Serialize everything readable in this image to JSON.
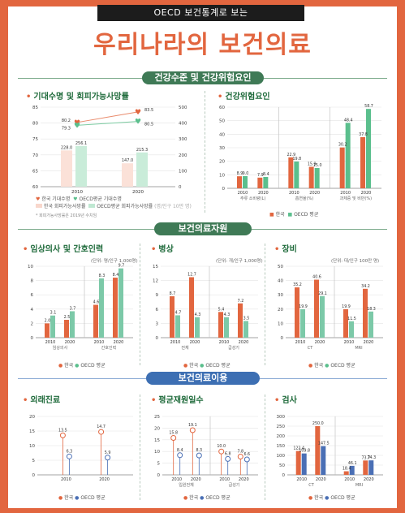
{
  "header": {
    "topbar": "OECD 보건통계로 보는",
    "title": "우리나라의 보건의료"
  },
  "sections": {
    "s1": "건강수준 및 건강위험요인",
    "s2": "보건의료자원",
    "s3": "보건의료이용"
  },
  "panels": {
    "life": "기대수명 및 회피가능사망률",
    "risk": "건강위험요인",
    "doctors": "임상의사 및 간호인력",
    "beds": "병상",
    "equip": "장비",
    "outpatient": "외래진료",
    "alos": "평균재원일수",
    "exam": "검사"
  },
  "legends": {
    "korea": "한국",
    "oecd": "OECD 평균",
    "life_k_le": "한국 기대수명",
    "life_o_le": "OECD평균 기대수명",
    "life_k_am": "한국 회피가능사망률",
    "life_o_am": "OECD평균 회피가능사망률",
    "life_note": "* 회피가능사망률은 2019년 수치임",
    "life_unit_right": "(명/인구 10만 명)"
  },
  "units": {
    "doctors": "(단위: 명/인구 1,000명)",
    "beds": "(단위: 개/인구 1,000명)",
    "equip": "(단위: 대/인구 100만 명)"
  },
  "colors": {
    "korea": "#e2663f",
    "oecd": "#5bbf8d",
    "oecd_blue": "#4a6fb5",
    "green_title": "#1e6a3a"
  },
  "chart_data": [
    {
      "id": "life",
      "type": "bar+line",
      "categories": [
        "2010",
        "2020"
      ],
      "y_left_ticks": [
        "60",
        "65",
        "70",
        "75",
        "80",
        "85"
      ],
      "ylim_left": [
        60,
        85
      ],
      "y_right_ticks": [
        "0",
        "100",
        "200",
        "300",
        "400",
        "500"
      ],
      "ylim_right": [
        0,
        500
      ],
      "series": [
        {
          "name": "한국 기대수명",
          "type": "line",
          "values": [
            80.2,
            83.5
          ]
        },
        {
          "name": "OECD평균 기대수명",
          "type": "line",
          "values": [
            79.3,
            80.5
          ]
        },
        {
          "name": "한국 회피가능사망률",
          "type": "bar",
          "values": [
            228.0,
            147.0
          ]
        },
        {
          "name": "OECD평균 회피가능사망률",
          "type": "bar",
          "values": [
            256.1,
            215.3
          ]
        }
      ],
      "labels": {
        "k_line": [
          "80.2",
          "83.5"
        ],
        "o_line": [
          "79.3",
          "80.5"
        ],
        "k_bar": [
          "228.0",
          "147.0"
        ],
        "o_bar": [
          "256.1",
          "215.3"
        ]
      }
    },
    {
      "id": "risk",
      "type": "bar",
      "groups": [
        {
          "name": "주류 소비량(L)",
          "categories": [
            "2010",
            "2020"
          ],
          "korea": [
            8.9,
            7.9
          ],
          "oecd": [
            9.0,
            8.4
          ],
          "labels": [
            "8.9",
            "9.0",
            "7.9",
            "8.4"
          ]
        },
        {
          "name": "흡연율(%)",
          "categories": [
            "2010",
            "2020"
          ],
          "korea": [
            22.9,
            15.9
          ],
          "oecd": [
            19.8,
            15.0
          ],
          "labels": [
            "22.9",
            "19.8",
            "15.9",
            "15.0"
          ]
        },
        {
          "name": "과체중 및 비만(%)",
          "categories": [
            "2010",
            "2020"
          ],
          "korea": [
            30.2,
            37.8
          ],
          "oecd": [
            48.4,
            58.7
          ],
          "labels": [
            "30.2",
            "48.4",
            "37.8",
            "58.7"
          ]
        }
      ],
      "y_ticks": [
        "0",
        "10",
        "20",
        "30",
        "40",
        "50",
        "60"
      ],
      "ylim": [
        0,
        60
      ]
    },
    {
      "id": "doctors",
      "type": "bar",
      "groups": [
        {
          "name": "임상의사",
          "categories": [
            "2010",
            "2020"
          ],
          "korea": [
            2.0,
            2.5
          ],
          "oecd": [
            3.1,
            3.7
          ]
        },
        {
          "name": "간호인력",
          "categories": [
            "2010",
            "2020"
          ],
          "korea": [
            4.6,
            8.4
          ],
          "oecd": [
            8.3,
            9.7
          ]
        }
      ],
      "labels": [
        "2.0",
        "3.1",
        "2.5",
        "3.7",
        "4.6",
        "8.3",
        "8.4",
        "9.7"
      ],
      "y_ticks": [
        "0",
        "2",
        "4",
        "6",
        "8",
        "10"
      ],
      "ylim": [
        0,
        10
      ]
    },
    {
      "id": "beds",
      "type": "bar",
      "groups": [
        {
          "name": "전체",
          "categories": [
            "2010",
            "2020"
          ],
          "korea": [
            8.7,
            12.7
          ],
          "oecd": [
            4.7,
            4.3
          ]
        },
        {
          "name": "급성기",
          "categories": [
            "2010",
            "2020"
          ],
          "korea": [
            5.4,
            7.2
          ],
          "oecd": [
            4.3,
            3.5
          ]
        }
      ],
      "labels": [
        "8.7",
        "4.7",
        "12.7",
        "4.3",
        "5.4",
        "4.3",
        "7.2",
        "3.5"
      ],
      "y_ticks": [
        "0",
        "3",
        "6",
        "9",
        "12",
        "15"
      ],
      "ylim": [
        0,
        15
      ]
    },
    {
      "id": "equip",
      "type": "bar",
      "groups": [
        {
          "name": "CT",
          "categories": [
            "2010",
            "2020"
          ],
          "korea": [
            35.2,
            40.6
          ],
          "oecd": [
            19.9,
            29.1
          ]
        },
        {
          "name": "MRI",
          "categories": [
            "2010",
            "2020"
          ],
          "korea": [
            19.9,
            34.2
          ],
          "oecd": [
            11.5,
            18.3
          ]
        }
      ],
      "labels": [
        "35.2",
        "19.9",
        "40.6",
        "29.1",
        "19.9",
        "11.5",
        "34.2",
        "18.3"
      ],
      "y_ticks": [
        "0",
        "10",
        "20",
        "30",
        "40",
        "50"
      ],
      "ylim": [
        0,
        50
      ]
    },
    {
      "id": "outpatient",
      "type": "lollipop",
      "categories": [
        "2010",
        "2020"
      ],
      "korea": [
        13.5,
        14.7
      ],
      "oecd": [
        6.3,
        5.9
      ],
      "labels": [
        "13.5",
        "6.3",
        "14.7",
        "5.9"
      ],
      "y_ticks": [
        "0",
        "5",
        "10",
        "15",
        "20"
      ],
      "ylim": [
        0,
        20
      ]
    },
    {
      "id": "alos",
      "type": "lollipop",
      "groups": [
        {
          "name": "입원전체",
          "categories": [
            "2010",
            "2020"
          ],
          "korea": [
            15.8,
            19.1
          ],
          "oecd": [
            8.4,
            8.3
          ]
        },
        {
          "name": "급성기",
          "categories": [
            "2010",
            "2020"
          ],
          "korea": [
            10.0,
            7.8
          ],
          "oecd": [
            6.8,
            6.6
          ]
        }
      ],
      "labels": [
        "15.8",
        "8.4",
        "19.1",
        "8.3",
        "10.0",
        "6.8",
        "7.8",
        "6.6"
      ],
      "y_ticks": [
        "0",
        "5",
        "10",
        "15",
        "20",
        "25"
      ],
      "ylim": [
        0,
        25
      ]
    },
    {
      "id": "exam",
      "type": "bar",
      "groups": [
        {
          "name": "CT",
          "categories": [
            "2010",
            "2020"
          ],
          "korea": [
            122.4,
            250.0
          ],
          "oecd": [
            109.8,
            147.5
          ]
        },
        {
          "name": "MRI",
          "categories": [
            "2010",
            "2020"
          ],
          "korea": [
            18.4,
            73.7
          ],
          "oecd": [
            46.1,
            74.3
          ]
        }
      ],
      "labels": [
        "122.4",
        "109.8",
        "250.0",
        "147.5",
        "18.4",
        "46.1",
        "73.7",
        "74.3"
      ],
      "y_ticks": [
        "0",
        "50",
        "100",
        "150",
        "200",
        "250",
        "300"
      ],
      "ylim": [
        0,
        300
      ]
    }
  ]
}
